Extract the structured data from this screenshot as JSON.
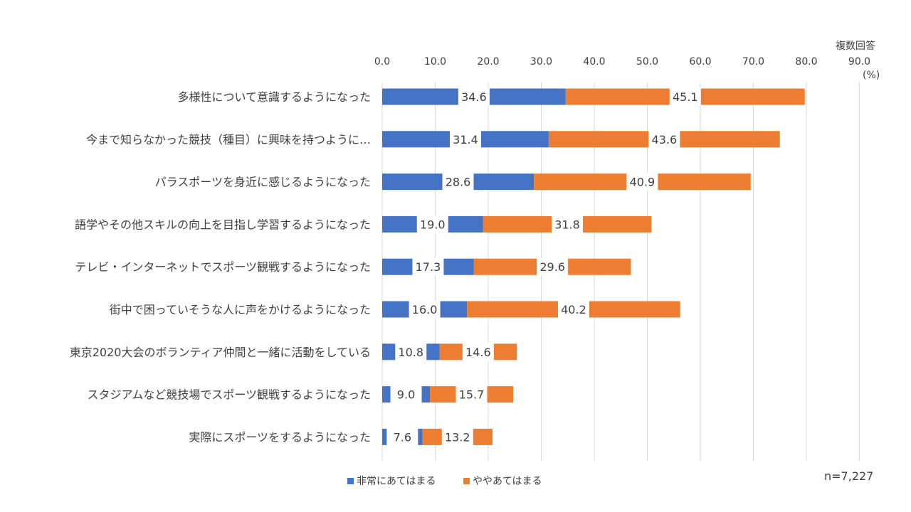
{
  "chart_data": {
    "type": "bar",
    "orientation": "horizontal",
    "stacked": true,
    "categories": [
      "多様性について意識するようになった",
      "今まで知らなかった競技（種目）に興味を持つように…",
      "パラスポーツを身近に感じるようになった",
      "語学やその他スキルの向上を目指し学習するようになった",
      "テレビ・インターネットでスポーツ観戦するようになった",
      "街中で困っていそうな人に声をかけるようになった",
      "東京2020大会のボランティア仲間と一緒に活動をしている",
      "スタジアムなど競技場でスポーツ観戦するようになった",
      "実際にスポーツをするようになった"
    ],
    "series": [
      {
        "name": "非常にあてはまる",
        "color": "#4472C4",
        "values": [
          34.6,
          31.4,
          28.6,
          19.0,
          17.3,
          16.0,
          10.8,
          9.0,
          7.6
        ]
      },
      {
        "name": "ややあてはまる",
        "color": "#ED7D31",
        "values": [
          45.1,
          43.6,
          40.9,
          31.8,
          29.6,
          40.2,
          14.6,
          15.7,
          13.2
        ]
      }
    ],
    "value_labels": {
      "s0": [
        "34.6",
        "31.4",
        "28.6",
        "19.0",
        "17.3",
        "16.0",
        "10.8",
        "9.0",
        "7.6"
      ],
      "s1": [
        "45.1",
        "43.6",
        "40.9",
        "31.8",
        "29.6",
        "40.2",
        "14.6",
        "15.7",
        "13.2"
      ]
    },
    "xlim": [
      0,
      90
    ],
    "xticks": [
      0,
      10,
      20,
      30,
      40,
      50,
      60,
      70,
      80,
      90
    ],
    "xtick_labels": [
      "0.0",
      "10.0",
      "20.0",
      "30.0",
      "40.0",
      "50.0",
      "60.0",
      "70.0",
      "80.0",
      "90.0"
    ],
    "grid": true,
    "legend_position": "bottom"
  },
  "notes": {
    "multiple_answer": "複数回答",
    "unit": "(%)",
    "sample_size": "n=7,227"
  },
  "legend": {
    "items": [
      "非常にあてはまる",
      "ややあてはまる"
    ]
  }
}
